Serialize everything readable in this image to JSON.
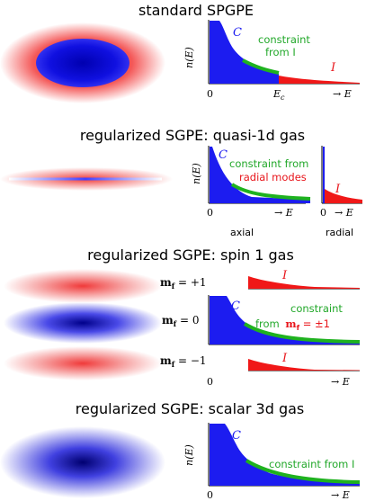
{
  "colors": {
    "blue": "#1c1cf0",
    "red": "#f01818",
    "green": "#1fb21f",
    "pink": "#f6c8c8",
    "light_blue": "#c9c9fb"
  },
  "panels": {
    "p1": {
      "title": "standard SPGPE",
      "ylabel": "n(E)",
      "cal_C": "C",
      "cal_I": "I",
      "constraint_line1": "constraint",
      "constraint_line2": "from I",
      "x0": "0",
      "xEc": "E",
      "xEc_sub": "c",
      "xarrow": "→ E"
    },
    "p2": {
      "title": "regularized SGPE: quasi-1d gas",
      "ylabel": "n(E)",
      "cal_C": "C",
      "cal_I": "I",
      "constraint_line1": "constraint from",
      "constraint_line2": "radial modes",
      "x0": "0",
      "xarrow": "→ E",
      "x0_radial": "0",
      "xarrow_radial": "→ E",
      "axial_label": "axial",
      "radial_label": "radial"
    },
    "p3": {
      "title": "regularized SGPE: spin 1 gas",
      "mf_plus": "m",
      "mf_plus_sub": "f",
      "mf_plus_val": " = +1",
      "mf_zero": "m",
      "mf_zero_sub": "f",
      "mf_zero_val": " = 0",
      "mf_minus": "m",
      "mf_minus_sub": "f",
      "mf_minus_val": " = −1",
      "cal_C": "C",
      "cal_I_top": "I",
      "cal_I_bottom": "I",
      "constraint_line1": "constraint",
      "constraint_line2": "from",
      "constraint_m": "m",
      "constraint_m_sub": "f",
      "constraint_val": " = ±1",
      "x0": "0",
      "xarrow": "→ E"
    },
    "p4": {
      "title": "regularized SGPE: scalar 3d gas",
      "ylabel": "n(E)",
      "cal_C": "C",
      "constraint_text": "constraint from I",
      "x0": "0",
      "xarrow": "→ E"
    }
  }
}
